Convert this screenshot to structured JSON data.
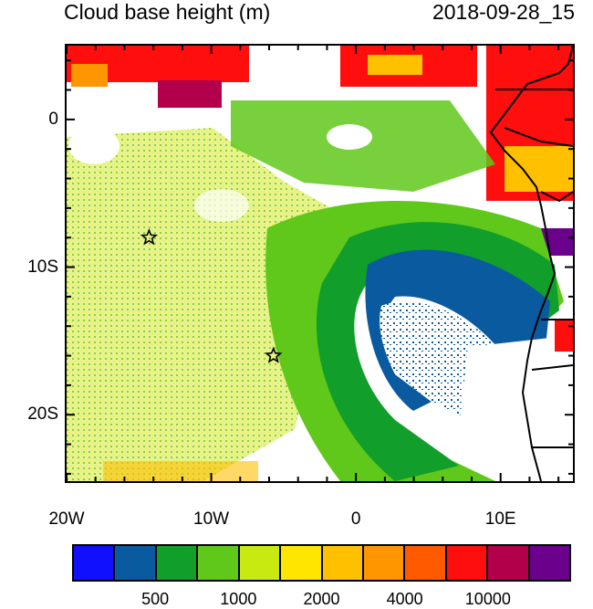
{
  "title_left": "Cloud base height (m)",
  "title_right": "2018-09-28_15",
  "map": {
    "lon_range": [
      -20,
      15
    ],
    "lat_range": [
      -24.5,
      5
    ],
    "lat_ticks": [
      {
        "value": 0,
        "label": "0"
      },
      {
        "value": -10,
        "label": "10S"
      },
      {
        "value": -20,
        "label": "20S"
      }
    ],
    "lon_ticks": [
      {
        "value": -20,
        "label": "20W"
      },
      {
        "value": -10,
        "label": "10W"
      },
      {
        "value": 0,
        "label": "0"
      },
      {
        "value": 10,
        "label": "10E"
      }
    ],
    "stars": [
      {
        "name": "star-marker-north",
        "lon": -14.3,
        "lat": -8.0
      },
      {
        "name": "star-marker-south",
        "lon": -5.7,
        "lat": -16.0
      }
    ]
  },
  "colorbar": {
    "colors": [
      "#1010ff",
      "#0a5aa0",
      "#119e2a",
      "#5fc81a",
      "#c9ea10",
      "#ffe600",
      "#ffc000",
      "#ff9600",
      "#ff5a00",
      "#ff0e0e",
      "#b2004a",
      "#6a008c"
    ],
    "labels": [
      {
        "text": "500",
        "index": 1
      },
      {
        "text": "1000",
        "index": 3
      },
      {
        "text": "2000",
        "index": 5
      },
      {
        "text": "4000",
        "index": 7
      },
      {
        "text": "10000",
        "index": 9
      }
    ]
  }
}
